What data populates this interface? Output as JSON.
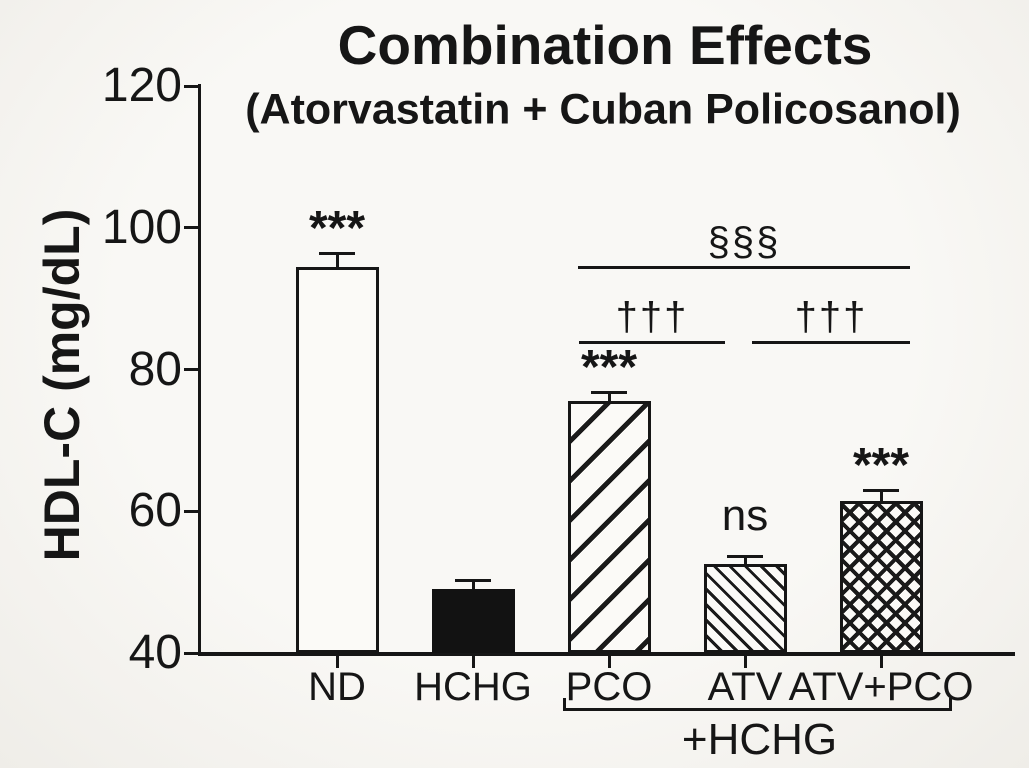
{
  "chart_data": {
    "type": "bar",
    "title": "Combination Effects",
    "subtitle": "(Atorvastatin + Cuban Policosanol)",
    "ylabel": "HDL-C (mg/dL)",
    "xlabel": "",
    "ylim": [
      40,
      120
    ],
    "yticks": [
      40,
      60,
      80,
      100,
      120
    ],
    "categories": [
      "ND",
      "HCHG",
      "PCO",
      "ATV",
      "ATV+PCO"
    ],
    "values": [
      94.5,
      49,
      75.5,
      52.5,
      61.5
    ],
    "errors": [
      1.9,
      1.3,
      1.3,
      1.2,
      1.5
    ],
    "bar_styles": [
      "white",
      "black",
      "hatch-forward",
      "hatch-back",
      "crosshatch"
    ],
    "bar_annotations": [
      "***",
      "",
      "***",
      "ns",
      "***"
    ],
    "sig_brackets": [
      {
        "label": "§§§",
        "from": "PCO",
        "to": "ATV+PCO",
        "y_value": 94.6
      },
      {
        "label": "†††",
        "from": "PCO",
        "to": "ATV",
        "y_value": 84.0
      },
      {
        "label": "†††",
        "from": "ATV",
        "to": "ATV+PCO",
        "y_value": 84.0
      }
    ],
    "group_bracket": {
      "label": "+HCHG",
      "from": "PCO",
      "to": "ATV+PCO"
    },
    "grid": false,
    "legend": false
  }
}
